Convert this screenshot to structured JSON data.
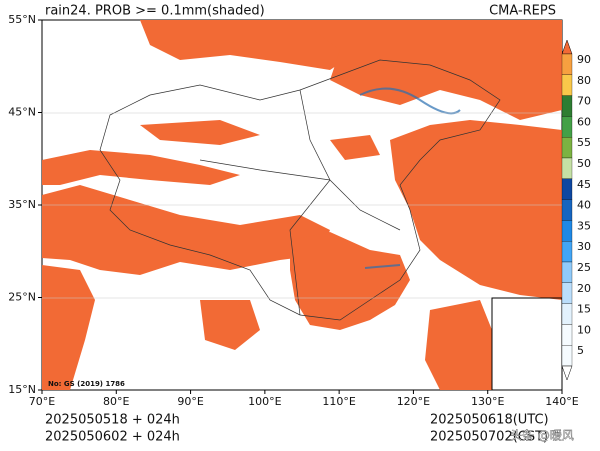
{
  "header": {
    "title": "rain24. PROB >= 0.1mm(shaded)",
    "source": "CMA-REPS"
  },
  "map": {
    "lat_labels": [
      "55°N",
      "45°N",
      "35°N",
      "25°N",
      "15°N"
    ],
    "lon_labels": [
      "70°E",
      "80°E",
      "90°E",
      "100°E",
      "110°E",
      "120°E",
      "130°E",
      "140°E"
    ],
    "map_number": "No: GS (2019) 1786"
  },
  "colorbar": {
    "ticks": [
      90,
      80,
      70,
      60,
      55,
      50,
      45,
      40,
      35,
      30,
      25,
      20,
      15,
      10,
      5
    ]
  },
  "footer": {
    "init_1": "2025050518  +  024h",
    "init_2": "2025050602  +  024h",
    "valid_1": "2025050618(UTC)",
    "valid_2": "2025050702(CST)",
    "watermark": "头条 @暖风"
  }
}
